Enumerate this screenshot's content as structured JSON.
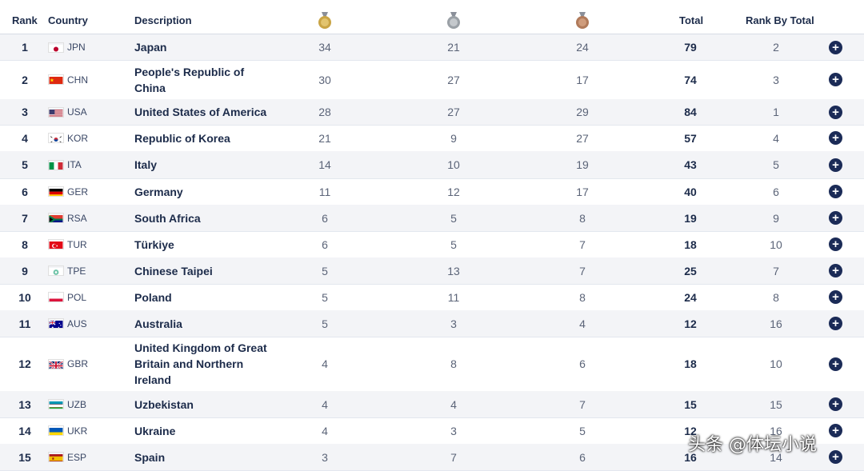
{
  "header": {
    "rank": "Rank",
    "country": "Country",
    "description": "Description",
    "total": "Total",
    "rank_by_total": "Rank By Total"
  },
  "rows": [
    {
      "rank": "1",
      "code": "JPN",
      "desc": [
        "Japan"
      ],
      "gold": "34",
      "silver": "21",
      "bronze": "24",
      "total": "79",
      "rbt": "2"
    },
    {
      "rank": "2",
      "code": "CHN",
      "desc": [
        "People's Republic of",
        "China"
      ],
      "gold": "30",
      "silver": "27",
      "bronze": "17",
      "total": "74",
      "rbt": "3"
    },
    {
      "rank": "3",
      "code": "USA",
      "desc": [
        "United States of America"
      ],
      "gold": "28",
      "silver": "27",
      "bronze": "29",
      "total": "84",
      "rbt": "1"
    },
    {
      "rank": "4",
      "code": "KOR",
      "desc": [
        "Republic of Korea"
      ],
      "gold": "21",
      "silver": "9",
      "bronze": "27",
      "total": "57",
      "rbt": "4"
    },
    {
      "rank": "5",
      "code": "ITA",
      "desc": [
        "Italy"
      ],
      "gold": "14",
      "silver": "10",
      "bronze": "19",
      "total": "43",
      "rbt": "5"
    },
    {
      "rank": "6",
      "code": "GER",
      "desc": [
        "Germany"
      ],
      "gold": "11",
      "silver": "12",
      "bronze": "17",
      "total": "40",
      "rbt": "6"
    },
    {
      "rank": "7",
      "code": "RSA",
      "desc": [
        "South Africa"
      ],
      "gold": "6",
      "silver": "5",
      "bronze": "8",
      "total": "19",
      "rbt": "9"
    },
    {
      "rank": "8",
      "code": "TUR",
      "desc": [
        "Türkiye"
      ],
      "gold": "6",
      "silver": "5",
      "bronze": "7",
      "total": "18",
      "rbt": "10"
    },
    {
      "rank": "9",
      "code": "TPE",
      "desc": [
        "Chinese Taipei"
      ],
      "gold": "5",
      "silver": "13",
      "bronze": "7",
      "total": "25",
      "rbt": "7"
    },
    {
      "rank": "10",
      "code": "POL",
      "desc": [
        "Poland"
      ],
      "gold": "5",
      "silver": "11",
      "bronze": "8",
      "total": "24",
      "rbt": "8"
    },
    {
      "rank": "11",
      "code": "AUS",
      "desc": [
        "Australia"
      ],
      "gold": "5",
      "silver": "3",
      "bronze": "4",
      "total": "12",
      "rbt": "16"
    },
    {
      "rank": "12",
      "code": "GBR",
      "desc": [
        "United Kingdom of Great",
        "Britain and Northern",
        "Ireland"
      ],
      "gold": "4",
      "silver": "8",
      "bronze": "6",
      "total": "18",
      "rbt": "10"
    },
    {
      "rank": "13",
      "code": "UZB",
      "desc": [
        "Uzbekistan"
      ],
      "gold": "4",
      "silver": "4",
      "bronze": "7",
      "total": "15",
      "rbt": "15"
    },
    {
      "rank": "14",
      "code": "UKR",
      "desc": [
        "Ukraine"
      ],
      "gold": "4",
      "silver": "3",
      "bronze": "5",
      "total": "12",
      "rbt": "16"
    },
    {
      "rank": "15",
      "code": "ESP",
      "desc": [
        "Spain"
      ],
      "gold": "3",
      "silver": "7",
      "bronze": "6",
      "total": "16",
      "rbt": "14"
    }
  ],
  "colors": {
    "gold": "#c9a445",
    "silver": "#9aa0a6",
    "bronze": "#b07a5a",
    "accent": "#1b2b57"
  },
  "watermark": "头条 @体坛小说"
}
